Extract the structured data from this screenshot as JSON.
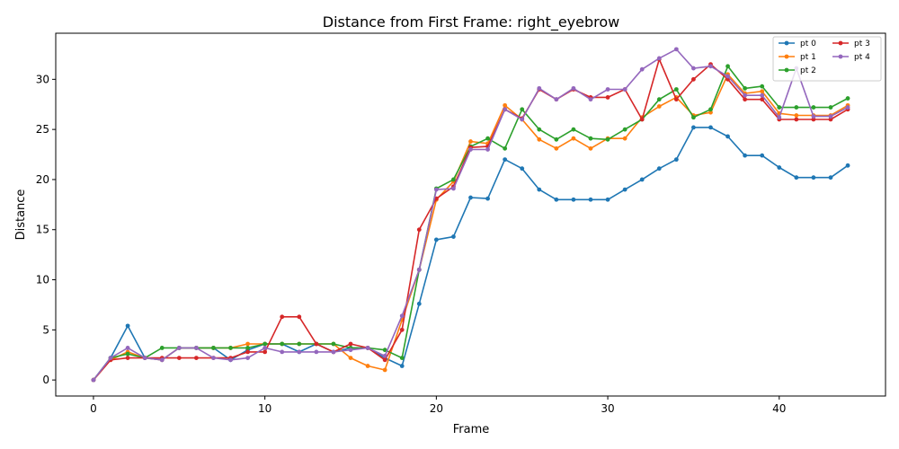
{
  "chart_data": {
    "type": "line",
    "title": "Distance from First Frame: right_eyebrow",
    "xlabel": "Frame",
    "ylabel": "Distance",
    "xlim": [
      -2.2,
      46.2
    ],
    "ylim": [
      -1.6,
      34.6
    ],
    "xticks": [
      0,
      10,
      20,
      30,
      40
    ],
    "yticks": [
      0,
      5,
      10,
      15,
      20,
      25,
      30
    ],
    "grid": false,
    "legend_position": "top-right",
    "legend_columns": 2,
    "x": [
      0,
      1,
      2,
      3,
      4,
      5,
      6,
      7,
      8,
      9,
      10,
      11,
      12,
      13,
      14,
      15,
      16,
      17,
      18,
      19,
      20,
      21,
      22,
      23,
      24,
      25,
      26,
      27,
      28,
      29,
      30,
      31,
      32,
      33,
      34,
      35,
      36,
      37,
      38,
      39,
      40,
      41,
      42,
      43,
      44
    ],
    "series": [
      {
        "name": "pt 0",
        "color": "#1f77b4",
        "values": [
          0,
          2.2,
          5.4,
          2.2,
          2.0,
          3.2,
          3.2,
          3.2,
          2.0,
          3.0,
          3.6,
          3.6,
          2.8,
          3.6,
          2.8,
          3.2,
          3.2,
          2.2,
          1.4,
          7.6,
          14.0,
          14.3,
          18.2,
          18.1,
          22.0,
          21.1,
          19.0,
          18.0,
          18.0,
          18.0,
          18.0,
          19.0,
          20.0,
          21.1,
          22.0,
          25.2,
          25.2,
          24.3,
          22.4,
          22.4,
          21.2,
          20.2,
          20.2,
          20.2,
          21.4
        ]
      },
      {
        "name": "pt 1",
        "color": "#ff7f0e",
        "values": [
          0,
          2.0,
          2.8,
          2.2,
          2.0,
          3.2,
          3.2,
          3.2,
          3.2,
          3.6,
          3.6,
          3.6,
          3.6,
          3.6,
          3.6,
          2.2,
          1.4,
          1.0,
          6.0,
          11.0,
          18.0,
          19.8,
          23.8,
          23.6,
          27.4,
          26.0,
          24.0,
          23.1,
          24.1,
          23.1,
          24.1,
          24.1,
          26.2,
          27.3,
          28.2,
          26.4,
          26.7,
          30.5,
          28.6,
          28.8,
          26.6,
          26.4,
          26.4,
          26.4,
          27.4
        ]
      },
      {
        "name": "pt 2",
        "color": "#2ca02c",
        "values": [
          0,
          2.2,
          2.6,
          2.2,
          3.2,
          3.2,
          3.2,
          3.2,
          3.2,
          3.2,
          3.6,
          3.6,
          3.6,
          3.6,
          3.6,
          3.2,
          3.2,
          3.0,
          2.2,
          11.0,
          19.1,
          20.0,
          23.3,
          24.1,
          23.1,
          27.0,
          25.0,
          24.0,
          25.0,
          24.1,
          24.0,
          25.0,
          26.0,
          28.0,
          29.0,
          26.2,
          27.0,
          31.3,
          29.1,
          29.3,
          27.2,
          27.2,
          27.2,
          27.2,
          28.1
        ]
      },
      {
        "name": "pt 3",
        "color": "#d62728",
        "values": [
          0,
          2.0,
          2.2,
          2.2,
          2.2,
          2.2,
          2.2,
          2.2,
          2.2,
          2.8,
          2.8,
          6.3,
          6.3,
          3.6,
          2.8,
          3.6,
          3.2,
          2.0,
          5.0,
          15.0,
          18.1,
          19.3,
          23.2,
          23.3,
          27.0,
          26.1,
          29.0,
          28.0,
          29.0,
          28.2,
          28.2,
          29.0,
          26.0,
          32.0,
          28.0,
          30.0,
          31.5,
          30.0,
          28.0,
          28.0,
          26.0,
          26.0,
          26.0,
          26.0,
          27.0
        ]
      },
      {
        "name": "pt 4",
        "color": "#9467bd",
        "values": [
          0,
          2.2,
          3.2,
          2.2,
          2.0,
          3.2,
          3.2,
          2.2,
          2.0,
          2.2,
          3.2,
          2.8,
          2.8,
          2.8,
          2.8,
          3.0,
          3.2,
          2.4,
          6.4,
          11.0,
          19.0,
          19.1,
          23.0,
          23.0,
          27.0,
          26.0,
          29.1,
          28.0,
          29.1,
          28.0,
          29.0,
          29.0,
          31.0,
          32.1,
          33.0,
          31.1,
          31.3,
          30.3,
          28.4,
          28.4,
          26.2,
          31.1,
          26.3,
          26.3,
          27.2
        ]
      }
    ]
  }
}
